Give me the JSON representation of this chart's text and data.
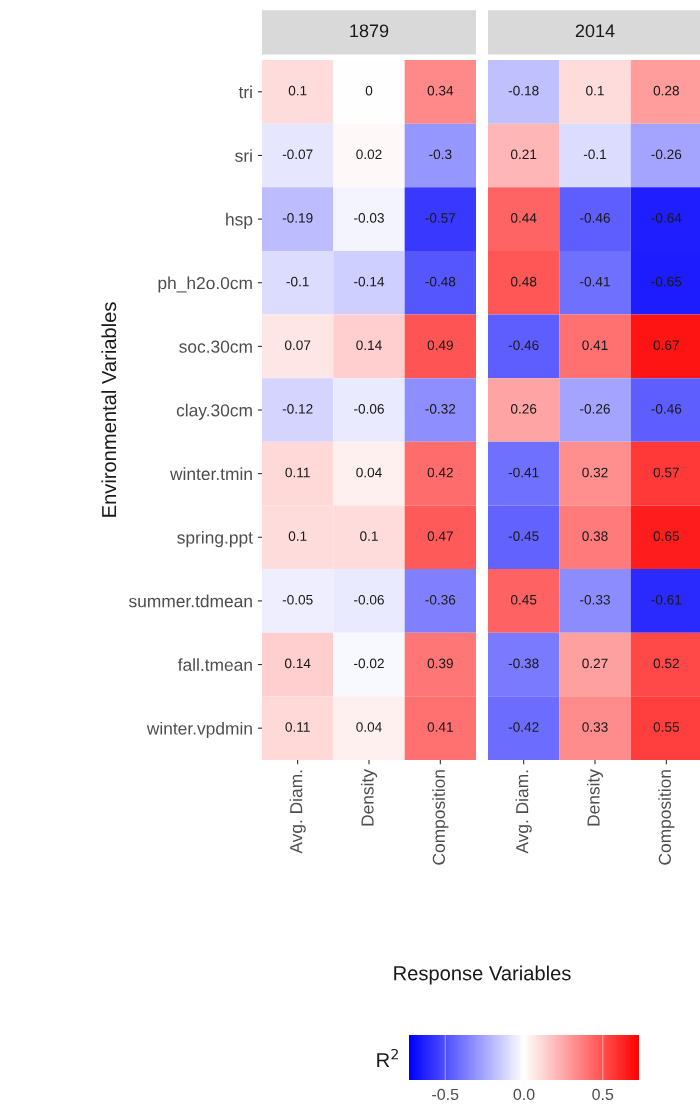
{
  "chart_data": [
    {
      "type": "heatmap",
      "title": "1879",
      "ylabel": "Environmental Variables",
      "xlabel": "Response Variables",
      "categories": [
        "Avg. Diam.",
        "Density",
        "Composition"
      ],
      "y_categories": [
        "tri",
        "sri",
        "hsp",
        "ph_h2o.0cm",
        "soc.30cm",
        "clay.30cm",
        "winter.tmin",
        "spring.ppt",
        "summer.tdmean",
        "fall.tmean",
        "winter.vpdmin"
      ],
      "cells": [
        [
          0.1,
          0,
          0.34
        ],
        [
          -0.07,
          0.02,
          -0.3
        ],
        [
          -0.19,
          -0.03,
          -0.57
        ],
        [
          -0.1,
          -0.14,
          -0.48
        ],
        [
          0.07,
          0.14,
          0.49
        ],
        [
          -0.12,
          -0.06,
          -0.32
        ],
        [
          0.11,
          0.04,
          0.42
        ],
        [
          0.1,
          0.1,
          0.47
        ],
        [
          -0.05,
          -0.06,
          -0.36
        ],
        [
          0.14,
          -0.02,
          0.39
        ],
        [
          0.11,
          0.04,
          0.41
        ]
      ],
      "data_labels": true
    },
    {
      "type": "heatmap",
      "title": "2014",
      "tick_labels": "x",
      "categories": [
        "Avg. Diam.",
        "Density",
        "Composition"
      ],
      "y_categories": [
        "tri",
        "sri",
        "hsp",
        "ph_h2o.0cm",
        "soc.30cm",
        "clay.30cm",
        "winter.tmin",
        "spring.ppt",
        "summer.tdmean",
        "fall.tmean",
        "winter.vpdmin"
      ],
      "cells": [
        [
          -0.18,
          0.1,
          0.28
        ],
        [
          0.21,
          -0.1,
          -0.26
        ],
        [
          0.44,
          -0.46,
          -0.64
        ],
        [
          0.48,
          -0.41,
          -0.65
        ],
        [
          -0.46,
          0.41,
          0.67
        ],
        [
          0.26,
          -0.26,
          -0.46
        ],
        [
          -0.41,
          0.32,
          0.57
        ],
        [
          -0.45,
          0.38,
          0.65
        ],
        [
          0.45,
          -0.33,
          -0.61
        ],
        [
          -0.38,
          0.27,
          0.52
        ],
        [
          -0.42,
          0.33,
          0.55
        ]
      ],
      "clim": [
        -0.73,
        0.73
      ],
      "data_labels": true,
      "clabel": "R$^{2}$",
      "cticks": [
        {
          "value": -0.5,
          "label": "-0.5"
        },
        {
          "value": 0,
          "label": "0.0"
        },
        {
          "value": 0.5,
          "label": "0.5"
        }
      ]
    }
  ]
}
